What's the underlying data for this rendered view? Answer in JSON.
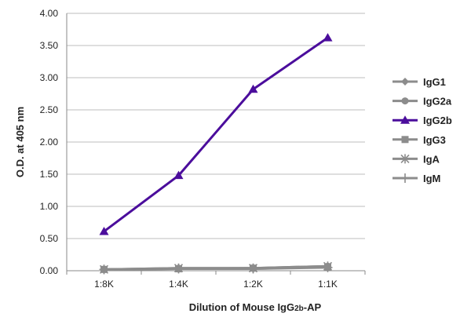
{
  "chart_data": {
    "type": "line",
    "categories": [
      "1:8K",
      "1:4K",
      "1:2K",
      "1:1K"
    ],
    "ylim": [
      0,
      4
    ],
    "yticks": [
      "0.00",
      "0.50",
      "1.00",
      "1.50",
      "2.00",
      "2.50",
      "3.00",
      "3.50",
      "4.00"
    ],
    "ylabel": "O.D. at 405 nm",
    "xlabel": {
      "prefix": "Dilution of Mouse IgG",
      "sub": "2b",
      "suffix": "-AP"
    },
    "grid": true,
    "legend_position": "right",
    "series": [
      {
        "name": "IgG1",
        "values": [
          0.02,
          0.03,
          0.03,
          0.06
        ],
        "color": "#8c8c8c",
        "marker": "diamond"
      },
      {
        "name": "IgG2a",
        "values": [
          0.02,
          0.04,
          0.04,
          0.07
        ],
        "color": "#8c8c8c",
        "marker": "circle"
      },
      {
        "name": "IgG2b",
        "values": [
          0.61,
          1.48,
          2.82,
          3.62
        ],
        "color": "#4b0d9c",
        "marker": "triangle"
      },
      {
        "name": "IgG3",
        "values": [
          0.02,
          0.03,
          0.04,
          0.06
        ],
        "color": "#8c8c8c",
        "marker": "square"
      },
      {
        "name": "IgA",
        "values": [
          0.02,
          0.04,
          0.04,
          0.07
        ],
        "color": "#8c8c8c",
        "marker": "star"
      },
      {
        "name": "IgM",
        "values": [
          0.02,
          0.03,
          0.03,
          0.05
        ],
        "color": "#8c8c8c",
        "marker": "plus"
      }
    ]
  }
}
